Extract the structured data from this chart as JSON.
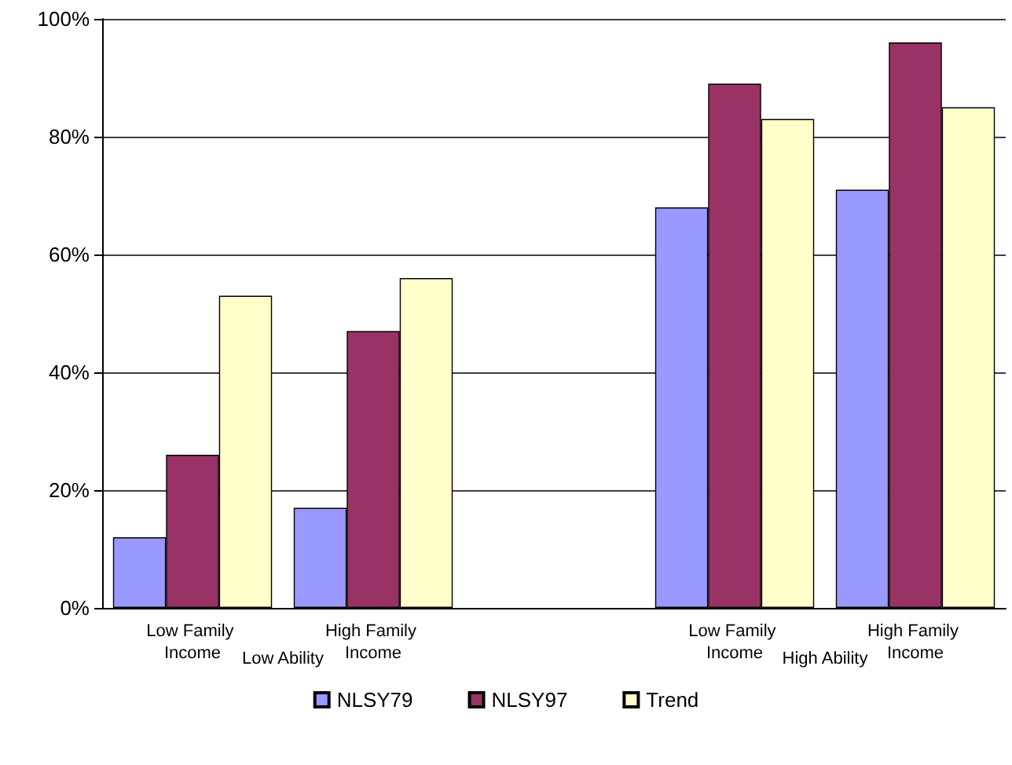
{
  "chart_data": {
    "type": "bar",
    "categories": [
      "Low Family Income",
      "High Family Income",
      null,
      "Low Family Income",
      "High Family Income"
    ],
    "series": [
      {
        "name": "NLSY79",
        "color": "#9999ff",
        "values": [
          12,
          17,
          null,
          68,
          71
        ]
      },
      {
        "name": "NLSY97",
        "color": "#993366",
        "values": [
          26,
          47,
          null,
          89,
          96
        ]
      },
      {
        "name": "Trend",
        "color": "#ffffcc",
        "values": [
          53,
          56,
          null,
          83,
          85
        ]
      }
    ],
    "ylim": [
      0,
      100
    ],
    "yticks": [
      {
        "value": 0,
        "label": "0%"
      },
      {
        "value": 20,
        "label": "20%"
      },
      {
        "value": 40,
        "label": "40%"
      },
      {
        "value": 60,
        "label": "60%"
      },
      {
        "value": 80,
        "label": "80%"
      },
      {
        "value": 100,
        "label": "100%"
      }
    ],
    "grid": "y",
    "legend": "bottom",
    "annotations": [
      "Low Ability",
      "High Ability"
    ]
  }
}
